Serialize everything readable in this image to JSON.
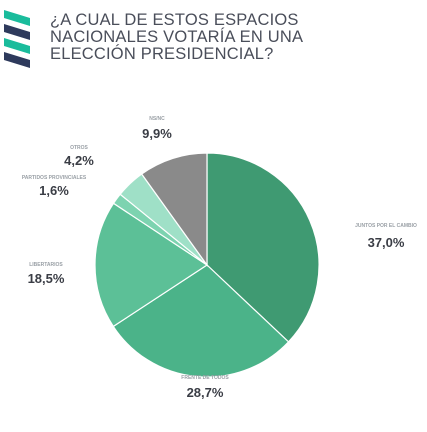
{
  "title_lines": [
    "¿A CUAL DE ESTOS ESPACIOS",
    "NACIONALES VOTARÍA EN UNA",
    "ELECCIÓN PRESIDENCIAL?"
  ],
  "logo_icon": "striped-logo-icon",
  "colors": {
    "logo_teal": "#1abc9c",
    "logo_navy": "#2e3a5c",
    "slice_label": "#9aa0a6",
    "value_text": "#3a3d45"
  },
  "chart_data": {
    "type": "pie",
    "title": "¿A CUAL DE ESTOS ESPACIOS NACIONALES VOTARÍA EN UNA ELECCIÓN PRESIDENCIAL?",
    "start_angle_deg": 0,
    "direction": "clockwise",
    "slices": [
      {
        "label": "JUNTOS POR EL CAMBIO",
        "value": 37.0,
        "display": "37,0%",
        "color": "#3f9a72"
      },
      {
        "label": "FRENTE DE TODOS",
        "value": 28.7,
        "display": "28,7%",
        "color": "#4bb389"
      },
      {
        "label": "LIBERTARIOS",
        "value": 18.5,
        "display": "18,5%",
        "color": "#5cc097"
      },
      {
        "label": "PARTIDOS PROVINCIALES",
        "value": 1.6,
        "display": "1,6%",
        "color": "#7dd3b0"
      },
      {
        "label": "OTROS",
        "value": 4.2,
        "display": "4,2%",
        "color": "#9fe0c7"
      },
      {
        "label": "NS/NC",
        "value": 9.9,
        "display": "9,9%",
        "color": "#8a8a8a"
      }
    ]
  }
}
